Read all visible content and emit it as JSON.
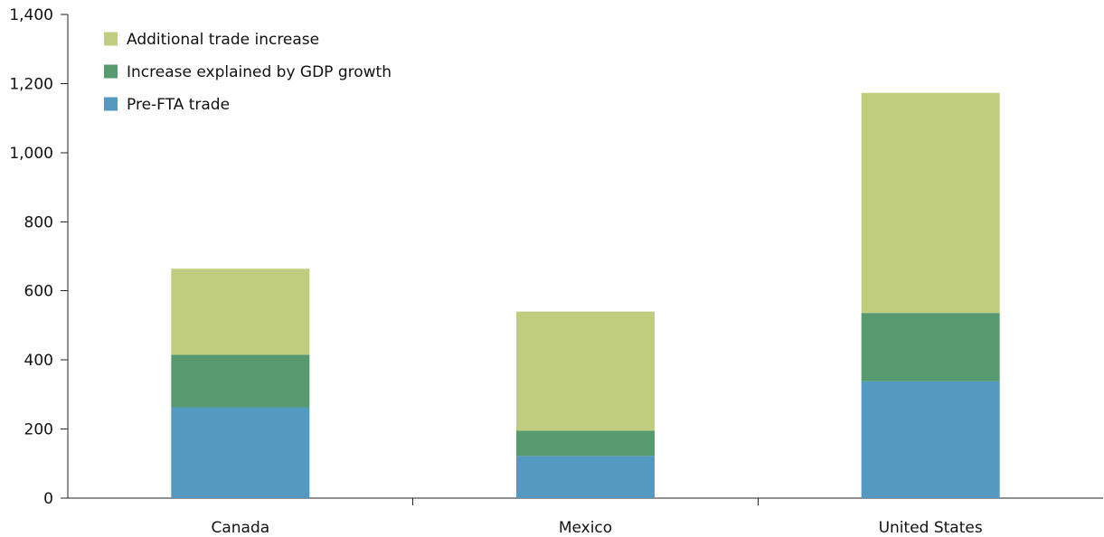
{
  "chart_data": {
    "type": "bar",
    "stacked": true,
    "title": "",
    "xlabel": "",
    "ylabel": "",
    "categories": [
      "Canada",
      "Mexico",
      "United States"
    ],
    "series": [
      {
        "name": "Pre-FTA trade",
        "values": [
          263,
          122,
          338
        ],
        "color": "#5499c0"
      },
      {
        "name": "Increase explained by GDP growth",
        "values": [
          152,
          73,
          198
        ],
        "color": "#589a70"
      },
      {
        "name": "Additional trade increase",
        "values": [
          249,
          345,
          637
        ],
        "color": "#c0cd7e"
      }
    ],
    "ylim": [
      0,
      1400
    ],
    "yticks": [
      0,
      200,
      400,
      600,
      800,
      1000,
      1200,
      1400
    ],
    "ytick_labels": [
      "0",
      "200",
      "400",
      "600",
      "800",
      "1,000",
      "1,200",
      "1,400"
    ],
    "legend_order": [
      "Additional trade increase",
      "Increase explained by GDP growth",
      "Pre-FTA trade"
    ],
    "legend_position": "top-left",
    "grid": false
  }
}
